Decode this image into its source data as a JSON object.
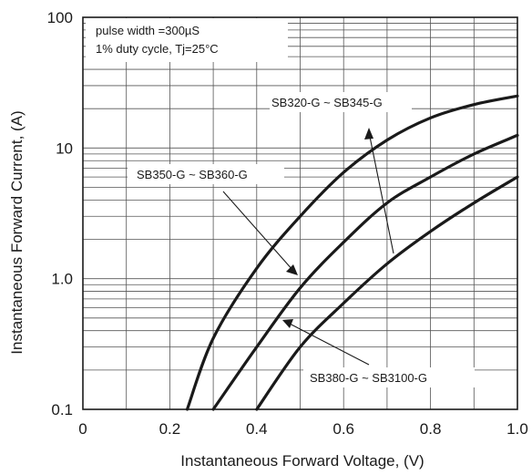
{
  "chart_data": {
    "type": "line",
    "title": "",
    "xlabel": "Instantaneous Forward Voltage, (V)",
    "ylabel": "Instantaneous Forward Current, (A)",
    "xlim": [
      0,
      1.0
    ],
    "ylim": [
      0.1,
      100
    ],
    "yscale": "log",
    "grid": true,
    "x_ticks": [
      "0",
      "0.2",
      "0.4",
      "0.6",
      "0.8",
      "1.0"
    ],
    "x_tick_values": [
      0,
      0.2,
      0.4,
      0.6,
      0.8,
      1.0
    ],
    "y_ticks": [
      "0.1",
      "1.0",
      "10",
      "100"
    ],
    "y_tick_values": [
      0.1,
      1.0,
      10,
      100
    ],
    "conditions": [
      "pulse width =300µS",
      "1% duty cycle, Tj=25°C"
    ],
    "series": [
      {
        "name": "SB320-G ~ SB345-G",
        "x": [
          0.24,
          0.3,
          0.4,
          0.5,
          0.6,
          0.7,
          0.8,
          0.9,
          1.0
        ],
        "y": [
          0.1,
          0.35,
          1.2,
          3.0,
          6.5,
          11.5,
          17.0,
          21.5,
          25.0
        ]
      },
      {
        "name": "SB350-G ~ SB360-G",
        "x": [
          0.3,
          0.4,
          0.5,
          0.6,
          0.7,
          0.8,
          0.9,
          1.0
        ],
        "y": [
          0.1,
          0.3,
          0.85,
          1.9,
          3.8,
          6.0,
          9.0,
          12.5
        ]
      },
      {
        "name": "SB380-G ~ SB3100-G",
        "x": [
          0.4,
          0.5,
          0.6,
          0.7,
          0.8,
          0.9,
          1.0
        ],
        "y": [
          0.1,
          0.3,
          0.65,
          1.3,
          2.3,
          3.8,
          6.0
        ]
      }
    ]
  }
}
